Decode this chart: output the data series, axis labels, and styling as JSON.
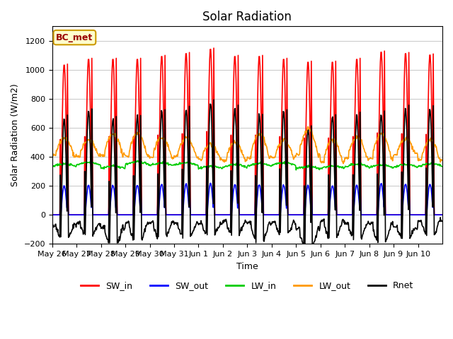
{
  "title": "Solar Radiation",
  "xlabel": "Time",
  "ylabel": "Solar Radiation (W/m2)",
  "ylim": [
    -200,
    1300
  ],
  "annotation_text": "BC_met",
  "annotation_color_bg": "#ffffcc",
  "annotation_color_border": "#cc9900",
  "annotation_text_color": "#990000",
  "series_colors": {
    "SW_in": "#ff0000",
    "SW_out": "#0000ff",
    "LW_in": "#00cc00",
    "LW_out": "#ff9900",
    "Rnet": "#000000"
  },
  "days": [
    "May 26",
    "May 27",
    "May 28",
    "May 29",
    "May 30",
    "May 31",
    "Jun 1",
    "Jun 2",
    "Jun 3",
    "Jun 4",
    "Jun 5",
    "Jun 6",
    "Jun 7",
    "Jun 8",
    "Jun 9",
    "Jun 10"
  ],
  "n_days": 16,
  "background_color": "#ffffff",
  "grid_color": "#cccccc"
}
